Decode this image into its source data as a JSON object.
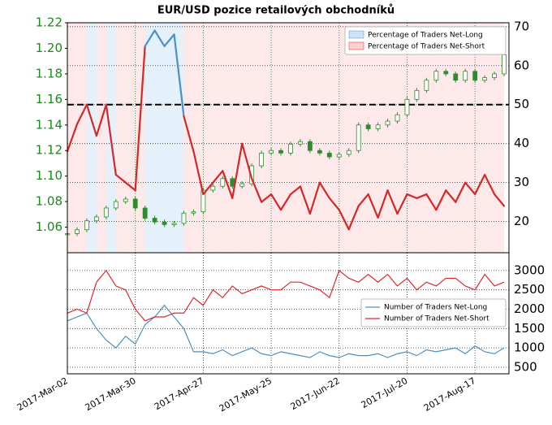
{
  "chart_data": [
    {
      "type": "candlestick-ratio",
      "title": "EUR/USD pozice retailových obchodníků",
      "x": [
        "2017-03-02",
        "2017-03-06",
        "2017-03-10",
        "2017-03-14",
        "2017-03-18",
        "2017-03-22",
        "2017-03-26",
        "2017-03-30",
        "2017-04-03",
        "2017-04-07",
        "2017-04-11",
        "2017-04-15",
        "2017-04-19",
        "2017-04-23",
        "2017-04-27",
        "2017-05-01",
        "2017-05-05",
        "2017-05-09",
        "2017-05-13",
        "2017-05-17",
        "2017-05-21",
        "2017-05-25",
        "2017-05-29",
        "2017-06-02",
        "2017-06-06",
        "2017-06-10",
        "2017-06-14",
        "2017-06-18",
        "2017-06-22",
        "2017-06-26",
        "2017-06-30",
        "2017-07-04",
        "2017-07-08",
        "2017-07-12",
        "2017-07-16",
        "2017-07-20",
        "2017-07-24",
        "2017-07-28",
        "2017-08-01",
        "2017-08-05",
        "2017-08-09",
        "2017-08-13",
        "2017-08-17",
        "2017-08-21",
        "2017-08-25",
        "2017-08-29"
      ],
      "xlim": [
        "2017-03-02",
        "2017-08-31"
      ],
      "xticks": [
        {
          "value": "2017-03-02",
          "label": "2017-Mar-02"
        },
        {
          "value": "2017-03-30",
          "label": "2017-Mar-30"
        },
        {
          "value": "2017-04-27",
          "label": "2017-Apr-27"
        },
        {
          "value": "2017-05-25",
          "label": "2017-May-25"
        },
        {
          "value": "2017-06-22",
          "label": "2017-Jun-22"
        },
        {
          "value": "2017-07-20",
          "label": "2017-Jul-20"
        },
        {
          "value": "2017-08-17",
          "label": "2017-Aug-17"
        }
      ],
      "ylim": [
        1.04,
        1.22
      ],
      "yticks": [
        1.06,
        1.08,
        {
          "value": 1.1,
          "label": "1.10"
        },
        1.12,
        1.14,
        1.16,
        1.18,
        {
          "value": 1.2,
          "label": "1.20"
        },
        1.22
      ],
      "y2lim": [
        12,
        71
      ],
      "y2ticks": [
        20,
        30,
        40,
        50,
        60,
        70
      ],
      "reference_line": 50,
      "grid": true,
      "price": {
        "color": "#2e8b2e",
        "values": [
          1.055,
          1.058,
          1.065,
          1.068,
          1.075,
          1.08,
          1.082,
          1.075,
          1.067,
          1.064,
          1.062,
          1.063,
          1.071,
          1.072,
          1.089,
          1.092,
          1.098,
          1.092,
          1.094,
          1.108,
          1.118,
          1.12,
          1.118,
          1.125,
          1.127,
          1.12,
          1.118,
          1.115,
          1.117,
          1.12,
          1.14,
          1.137,
          1.14,
          1.143,
          1.148,
          1.16,
          1.167,
          1.175,
          1.182,
          1.18,
          1.175,
          1.182,
          1.175,
          1.177,
          1.18,
          1.195
        ]
      },
      "ratio": {
        "axis": "y2",
        "values": [
          38,
          45,
          50,
          42,
          50,
          32,
          30,
          28,
          65,
          69,
          65,
          68,
          47,
          38,
          27,
          30,
          33,
          26,
          40,
          31,
          25,
          27,
          23,
          27,
          29,
          22,
          30,
          26,
          23,
          18,
          24,
          27,
          21,
          28,
          22,
          27,
          26,
          27,
          23,
          28,
          25,
          30,
          27,
          32,
          27,
          24
        ]
      },
      "series": [
        {
          "name": "Percentage of Traders Net-Long",
          "color": "#4a90c8"
        },
        {
          "name": "Percentage of Traders Net-Short",
          "color": "#d62728"
        }
      ],
      "legend": "upper right"
    },
    {
      "type": "line",
      "ylim": [
        330,
        3460
      ],
      "yticks": [
        500,
        1000,
        1500,
        2000,
        2500,
        3000
      ],
      "grid": true,
      "series": [
        {
          "name": "Number of Traders Net-Long",
          "color": "#4a90c8",
          "values": [
            1700,
            1800,
            1900,
            1500,
            1200,
            1000,
            1300,
            1100,
            1600,
            1800,
            2100,
            1800,
            1500,
            900,
            900,
            850,
            950,
            800,
            900,
            1000,
            850,
            800,
            900,
            850,
            800,
            750,
            900,
            800,
            750,
            850,
            800,
            800,
            850,
            750,
            850,
            900,
            800,
            950,
            900,
            950,
            1000,
            850,
            1050,
            900,
            850,
            1000
          ]
        },
        {
          "name": "Number of Traders Net-Short",
          "color": "#e0282c",
          "values": [
            1900,
            2000,
            1900,
            2700,
            3000,
            2600,
            2500,
            2000,
            1700,
            1800,
            1800,
            1900,
            1900,
            2300,
            2100,
            2500,
            2300,
            2600,
            2400,
            2500,
            2600,
            2500,
            2500,
            2700,
            2700,
            2600,
            2500,
            2300,
            3000,
            2800,
            2700,
            2900,
            2700,
            2900,
            2600,
            2800,
            2500,
            2700,
            2600,
            2800,
            2800,
            2600,
            2500,
            2900,
            2600,
            2700
          ]
        }
      ],
      "legend": "center right"
    }
  ]
}
